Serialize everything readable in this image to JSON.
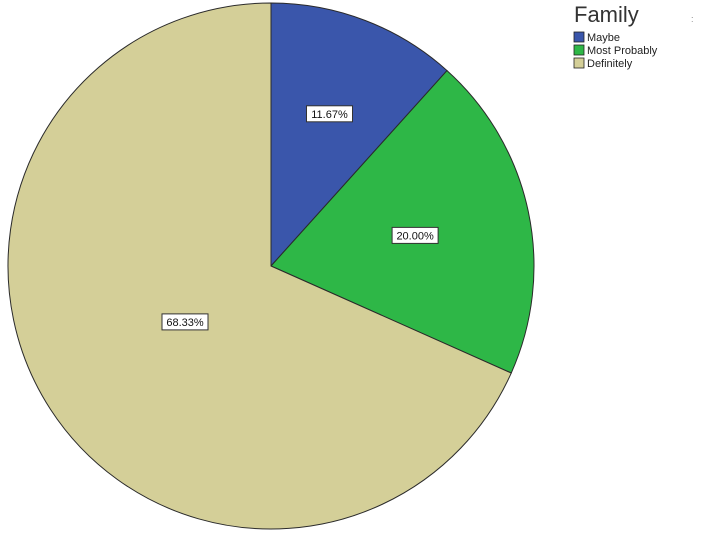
{
  "chart_data": {
    "type": "pie",
    "categories": [
      "Maybe",
      "Most Probably",
      "Definitely"
    ],
    "values": [
      11.67,
      20.0,
      68.33
    ],
    "labels": [
      "11.67%",
      "20.00%",
      "68.33%"
    ],
    "colors": [
      "#3a56ab",
      "#2eb747",
      "#d4cf98"
    ],
    "start": "12 o'clock, clockwise",
    "legend": {
      "title": "Family",
      "placement": "top-right",
      "entries": [
        "Maybe",
        "Most Probably",
        "Definitely"
      ]
    },
    "stray_mark": ":"
  }
}
